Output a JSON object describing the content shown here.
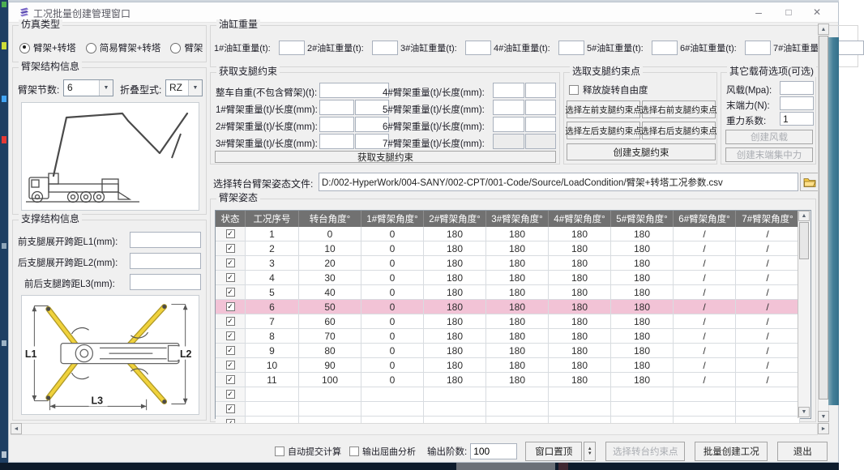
{
  "window": {
    "title": "工况批量创建管理窗口"
  },
  "icons": {
    "minimize": "–",
    "maximize": "□",
    "close": "✕",
    "up": "▲",
    "down": "▼",
    "left": "◄",
    "right": "►",
    "dropdown": "▼",
    "check": "✓"
  },
  "colors": {
    "row_highlight": "#f2c3d6",
    "table_header": "#717171",
    "leg_yellow": "#f0d23c"
  },
  "sim_type": {
    "title": "仿真类型",
    "options": [
      {
        "label": "臂架+转塔",
        "selected": true
      },
      {
        "label": "简易臂架+转塔",
        "selected": false
      },
      {
        "label": "臂架",
        "selected": false
      }
    ]
  },
  "boom_structure": {
    "title": "臂架结构信息",
    "sections_label": "臂架节数:",
    "sections_value": "6",
    "fold_label": "折叠型式:",
    "fold_value": "RZ"
  },
  "support_structure": {
    "title": "支撑结构信息",
    "l1_label": "前支腿展开跨距L1(mm):",
    "l2_label": "后支腿展开跨距L2(mm):",
    "l3_label": "前后支腿跨距L3(mm):",
    "diagram_labels": [
      "L1",
      "L2",
      "L3"
    ]
  },
  "cylinder_weight": {
    "title": "油缸重量",
    "fields": [
      "1#油缸重量(t):",
      "2#油缸重量(t):",
      "3#油缸重量(t):",
      "4#油缸重量(t):",
      "5#油缸重量(t):",
      "6#油缸重量(t):",
      "7#油缸重量(t):"
    ]
  },
  "outrigger_constraint": {
    "title": "获取支腿约束",
    "vehicle_weight_label": "整车自重(不包含臂架)(t):",
    "boom_rows_left": [
      "1#臂架重量(t)/长度(mm):",
      "2#臂架重量(t)/长度(mm):",
      "3#臂架重量(t)/长度(mm):"
    ],
    "boom_rows_right": [
      "4#臂架重量(t)/长度(mm):",
      "5#臂架重量(t)/长度(mm):",
      "6#臂架重量(t)/长度(mm):",
      "7#臂架重量(t)/长度(mm):"
    ],
    "get_button": "获取支腿约束"
  },
  "constraint_points": {
    "title": "选取支腿约束点",
    "release_label": "释放旋转自由度",
    "buttons": [
      "选择左前支腿约束点",
      "选择右前支腿约束点",
      "选择左后支腿约束点",
      "选择右后支腿约束点"
    ],
    "create_button": "创建支腿约束"
  },
  "other_loads": {
    "title": "其它载荷选项(可选)",
    "wind_label": "风载(Mpa):",
    "end_force_label": "末端力(N):",
    "gravity_label": "重力系数:",
    "gravity_value": "1",
    "wind_button": "创建风载",
    "end_force_button": "创建末端集中力"
  },
  "posture_file": {
    "label": "选择转台臂架姿态文件:",
    "path": "D:/002-HyperWork/004-SANY/002-CPT/001-Code/Source/LoadCondition/臂架+转塔工况参数.csv"
  },
  "posture_table": {
    "title": "臂架姿态",
    "headers": [
      "状态",
      "工况序号",
      "转台角度°",
      "1#臂架角度°",
      "2#臂架角度°",
      "3#臂架角度°",
      "4#臂架角度°",
      "5#臂架角度°",
      "6#臂架角度°",
      "7#臂架角度°"
    ],
    "rows": [
      {
        "checked": true,
        "highlight": false,
        "cells": [
          "1",
          "0",
          "0",
          "180",
          "180",
          "180",
          "180",
          "/",
          "/"
        ]
      },
      {
        "checked": true,
        "highlight": false,
        "cells": [
          "2",
          "10",
          "0",
          "180",
          "180",
          "180",
          "180",
          "/",
          "/"
        ]
      },
      {
        "checked": true,
        "highlight": false,
        "cells": [
          "3",
          "20",
          "0",
          "180",
          "180",
          "180",
          "180",
          "/",
          "/"
        ]
      },
      {
        "checked": true,
        "highlight": false,
        "cells": [
          "4",
          "30",
          "0",
          "180",
          "180",
          "180",
          "180",
          "/",
          "/"
        ]
      },
      {
        "checked": true,
        "highlight": false,
        "cells": [
          "5",
          "40",
          "0",
          "180",
          "180",
          "180",
          "180",
          "/",
          "/"
        ]
      },
      {
        "checked": true,
        "highlight": true,
        "cells": [
          "6",
          "50",
          "0",
          "180",
          "180",
          "180",
          "180",
          "/",
          "/"
        ]
      },
      {
        "checked": true,
        "highlight": false,
        "cells": [
          "7",
          "60",
          "0",
          "180",
          "180",
          "180",
          "180",
          "/",
          "/"
        ]
      },
      {
        "checked": true,
        "highlight": false,
        "cells": [
          "8",
          "70",
          "0",
          "180",
          "180",
          "180",
          "180",
          "/",
          "/"
        ]
      },
      {
        "checked": true,
        "highlight": false,
        "cells": [
          "9",
          "80",
          "0",
          "180",
          "180",
          "180",
          "180",
          "/",
          "/"
        ]
      },
      {
        "checked": true,
        "highlight": false,
        "cells": [
          "10",
          "90",
          "0",
          "180",
          "180",
          "180",
          "180",
          "/",
          "/"
        ]
      },
      {
        "checked": true,
        "highlight": false,
        "cells": [
          "11",
          "100",
          "0",
          "180",
          "180",
          "180",
          "180",
          "/",
          "/"
        ]
      },
      {
        "checked": true,
        "highlight": false,
        "cells": [
          "",
          "",
          "",
          "",
          "",
          "",
          "",
          "",
          ""
        ]
      },
      {
        "checked": true,
        "highlight": false,
        "cells": [
          "",
          "",
          "",
          "",
          "",
          "",
          "",
          "",
          ""
        ]
      },
      {
        "checked": true,
        "highlight": false,
        "cells": [
          "",
          "",
          "",
          "",
          "",
          "",
          "",
          "",
          ""
        ]
      }
    ]
  },
  "bottom_bar": {
    "auto_submit_label": "自动提交计算",
    "buckling_label": "输出屈曲分析",
    "order_label": "输出阶数:",
    "order_value": "100",
    "pin_button": "窗口置顶",
    "select_turret_button": "选择转台约束点",
    "batch_create_button": "批量创建工况",
    "exit_button": "退出"
  }
}
